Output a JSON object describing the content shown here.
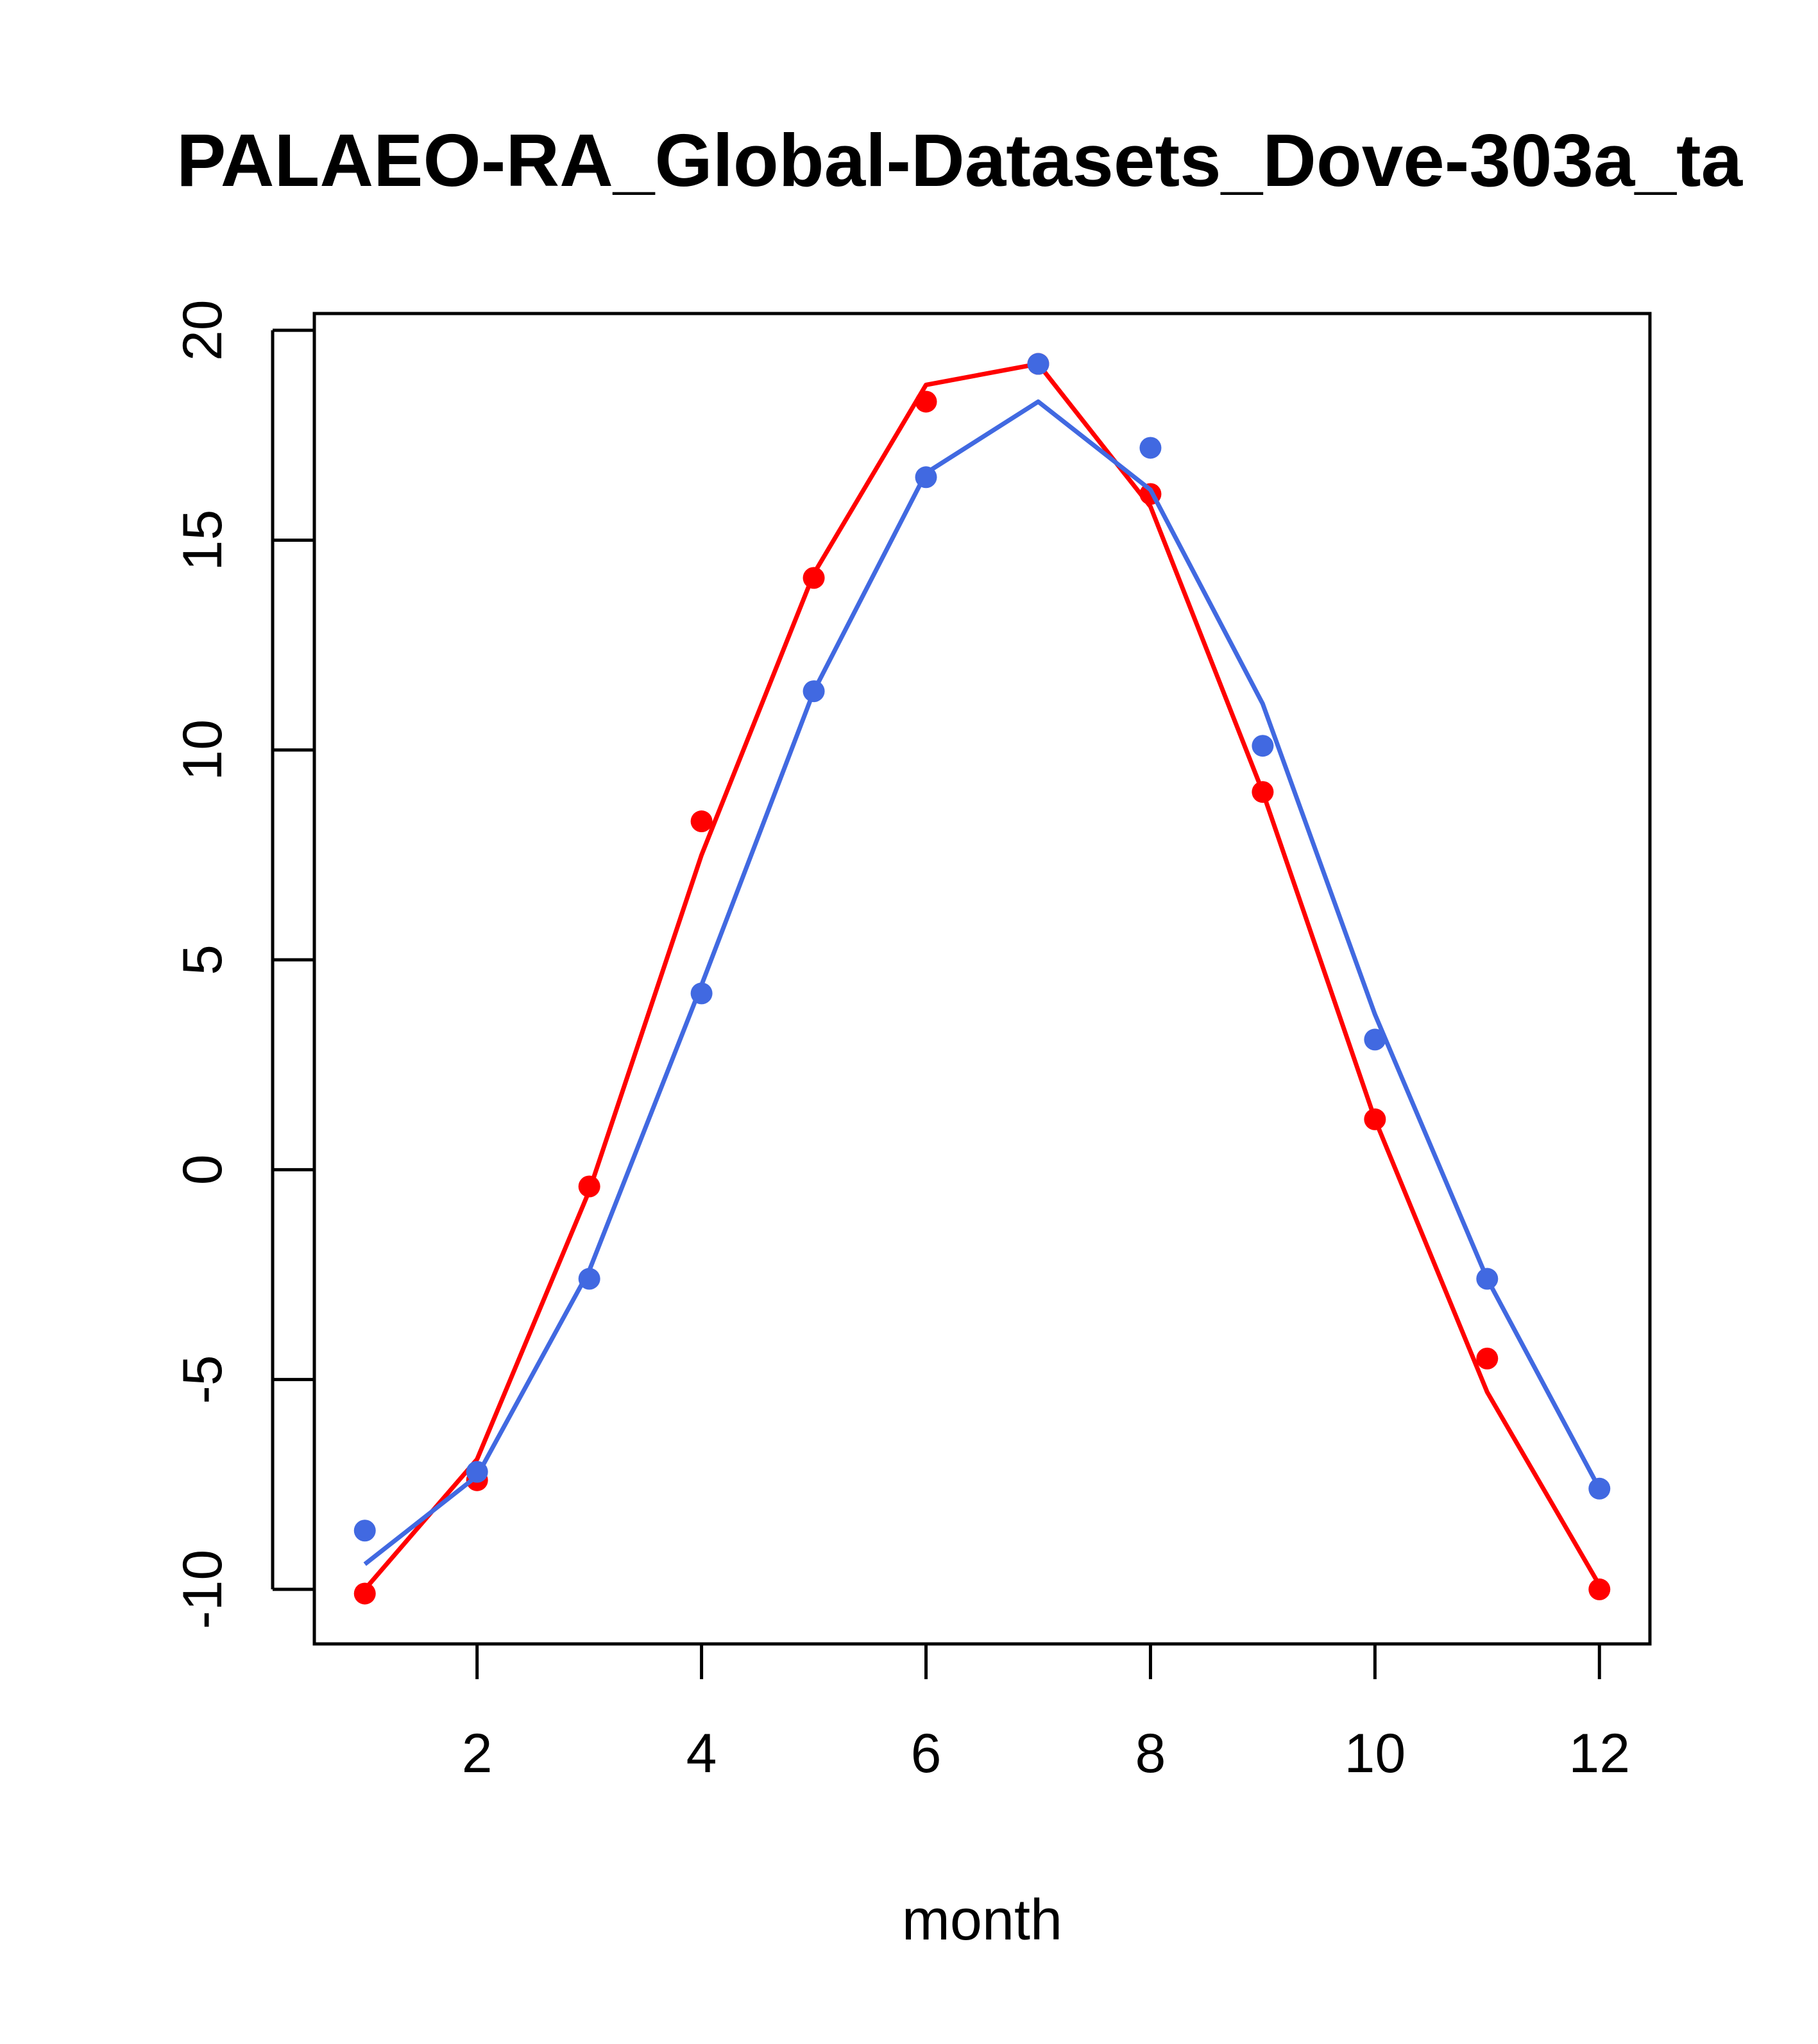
{
  "chart_data": {
    "type": "line",
    "title": "PALAEO-RA_Global-Datasets_Dove-303a_ta",
    "xlabel": "month",
    "ylabel": "",
    "xlim": [
      0.55,
      12.45
    ],
    "ylim": [
      -11.3,
      20.4
    ],
    "xticks": [
      2,
      4,
      6,
      8,
      10,
      12
    ],
    "yticks": [
      -10,
      -5,
      0,
      5,
      10,
      15,
      20
    ],
    "grid": false,
    "x": [
      1,
      2,
      3,
      4,
      5,
      6,
      7,
      8,
      9,
      10,
      11,
      12
    ],
    "series": [
      {
        "color": "#ff0000",
        "points": [
          -10.1,
          -7.4,
          -0.4,
          8.3,
          14.1,
          18.3,
          19.2,
          16.1,
          9.0,
          1.2,
          -4.5,
          -10.0
        ],
        "line": [
          -10.0,
          -6.9,
          -0.5,
          7.5,
          14.2,
          18.7,
          19.2,
          15.8,
          9.0,
          1.2,
          -5.3,
          -9.9
        ]
      },
      {
        "color": "#4169e1",
        "points": [
          -8.6,
          -7.2,
          -2.6,
          4.2,
          11.4,
          16.5,
          19.2,
          17.2,
          10.1,
          3.1,
          -2.6,
          -7.6
        ],
        "line": [
          -9.4,
          -7.3,
          -2.4,
          4.4,
          11.4,
          16.6,
          18.3,
          16.2,
          11.1,
          3.7,
          -2.6,
          -7.6
        ]
      }
    ]
  }
}
